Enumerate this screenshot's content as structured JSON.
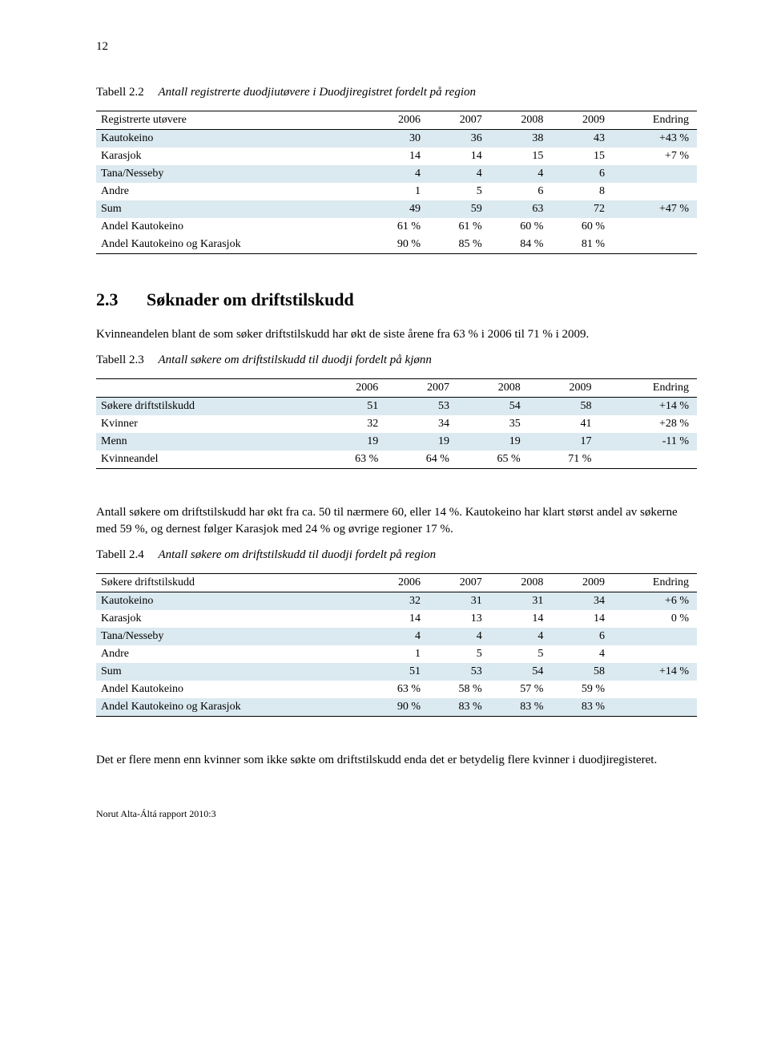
{
  "page_number": "12",
  "table1": {
    "caption_label": "Tabell 2.2",
    "caption_title": "Antall registrerte duodjiutøvere i Duodjiregistret fordelt på region",
    "columns": [
      "Registrerte utøvere",
      "2006",
      "2007",
      "2008",
      "2009",
      "Endring"
    ],
    "rows": [
      {
        "shade": true,
        "c": [
          "Kautokeino",
          "30",
          "36",
          "38",
          "43",
          "+43 %"
        ]
      },
      {
        "shade": false,
        "c": [
          "Karasjok",
          "14",
          "14",
          "15",
          "15",
          "+7 %"
        ]
      },
      {
        "shade": true,
        "c": [
          "Tana/Nesseby",
          "4",
          "4",
          "4",
          "6",
          ""
        ]
      },
      {
        "shade": false,
        "c": [
          "Andre",
          "1",
          "5",
          "6",
          "8",
          ""
        ]
      },
      {
        "shade": true,
        "c": [
          "Sum",
          "49",
          "59",
          "63",
          "72",
          "+47 %"
        ]
      },
      {
        "shade": false,
        "c": [
          "Andel Kautokeino",
          "61 %",
          "61 %",
          "60 %",
          "60 %",
          ""
        ]
      },
      {
        "shade": false,
        "c": [
          "Andel Kautokeino og Karasjok",
          "90 %",
          "85 %",
          "84 %",
          "81 %",
          ""
        ]
      }
    ]
  },
  "section": {
    "num": "2.3",
    "title": "Søknader om driftstilskudd"
  },
  "para1": "Kvinneandelen blant de som søker driftstilskudd har økt de siste årene fra 63 % i 2006 til 71 % i 2009.",
  "table2": {
    "caption_label": "Tabell 2.3",
    "caption_title": "Antall søkere om driftstilskudd til duodji fordelt på kjønn",
    "columns": [
      "",
      "2006",
      "2007",
      "2008",
      "2009",
      "Endring"
    ],
    "rows": [
      {
        "shade": true,
        "c": [
          "Søkere driftstilskudd",
          "51",
          "53",
          "54",
          "58",
          "+14 %"
        ]
      },
      {
        "shade": false,
        "c": [
          "Kvinner",
          "32",
          "34",
          "35",
          "41",
          "+28 %"
        ]
      },
      {
        "shade": true,
        "c": [
          "Menn",
          "19",
          "19",
          "19",
          "17",
          "-11 %"
        ]
      },
      {
        "shade": false,
        "c": [
          "Kvinneandel",
          "63 %",
          "64 %",
          "65 %",
          "71 %",
          ""
        ]
      }
    ]
  },
  "para2": "Antall søkere om driftstilskudd har økt fra ca. 50 til nærmere 60, eller 14 %. Kautokeino har klart størst andel av søkerne med 59 %, og dernest følger Karasjok med 24 % og øvrige regioner 17 %.",
  "table3": {
    "caption_label": "Tabell 2.4",
    "caption_title": "Antall søkere om driftstilskudd til duodji fordelt på region",
    "columns": [
      "Søkere driftstilskudd",
      "2006",
      "2007",
      "2008",
      "2009",
      "Endring"
    ],
    "rows": [
      {
        "shade": true,
        "c": [
          "Kautokeino",
          "32",
          "31",
          "31",
          "34",
          "+6 %"
        ]
      },
      {
        "shade": false,
        "c": [
          "Karasjok",
          "14",
          "13",
          "14",
          "14",
          "0 %"
        ]
      },
      {
        "shade": true,
        "c": [
          "Tana/Nesseby",
          "4",
          "4",
          "4",
          "6",
          ""
        ]
      },
      {
        "shade": false,
        "c": [
          "Andre",
          "1",
          "5",
          "5",
          "4",
          ""
        ]
      },
      {
        "shade": true,
        "c": [
          "Sum",
          "51",
          "53",
          "54",
          "58",
          "+14 %"
        ]
      },
      {
        "shade": false,
        "c": [
          "Andel Kautokeino",
          "63 %",
          "58 %",
          "57 %",
          "59 %",
          ""
        ]
      },
      {
        "shade": true,
        "c": [
          "Andel Kautokeino og Karasjok",
          "90 %",
          "83 %",
          "83 %",
          "83 %",
          ""
        ]
      }
    ]
  },
  "para3": "Det er flere menn enn kvinner som ikke søkte om driftstilskudd enda det er betydelig flere kvinner i duodjiregisteret.",
  "footer": "Norut Alta-Áltá rapport 2010:3"
}
